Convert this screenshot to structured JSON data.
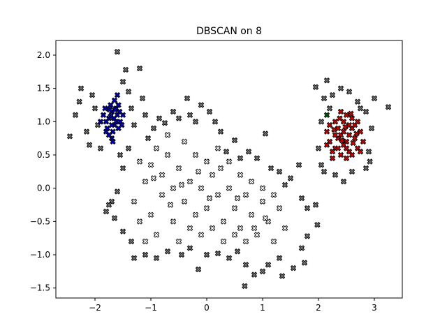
{
  "chart_data": {
    "type": "scatter",
    "title": "DBSCAN on 8",
    "xlabel": "",
    "ylabel": "",
    "xlim": [
      -2.7,
      3.5
    ],
    "ylim": [
      -1.65,
      2.22
    ],
    "xticks": [
      -2,
      -1,
      0,
      1,
      2,
      3
    ],
    "yticks": [
      -1.5,
      -1.0,
      -0.5,
      0.0,
      0.5,
      1.0,
      1.5,
      2.0
    ],
    "xtick_labels": [
      "−2",
      "−1",
      "0",
      "1",
      "2",
      "3"
    ],
    "ytick_labels": [
      "−1.5",
      "−1.0",
      "−0.5",
      "0.0",
      "0.5",
      "1.0",
      "1.5",
      "2.0"
    ],
    "grid": false,
    "marker": "X",
    "series": [
      {
        "color": "#0000cc",
        "kind": "cluster",
        "points": [
          [
            -1.75,
            1.05
          ],
          [
            -1.7,
            1.15
          ],
          [
            -1.65,
            0.95
          ],
          [
            -1.6,
            1.1
          ],
          [
            -1.8,
            1.0
          ],
          [
            -1.72,
            1.25
          ],
          [
            -1.62,
            1.2
          ],
          [
            -1.55,
            1.0
          ],
          [
            -1.85,
            1.1
          ],
          [
            -1.68,
            0.85
          ],
          [
            -1.58,
            0.9
          ],
          [
            -1.78,
            0.9
          ],
          [
            -1.7,
            0.75
          ],
          [
            -1.5,
            1.1
          ],
          [
            -1.65,
            1.32
          ],
          [
            -1.6,
            1.4
          ],
          [
            -1.82,
            1.2
          ],
          [
            -1.75,
            0.8
          ],
          [
            -1.52,
            0.95
          ],
          [
            -1.66,
            1.05
          ],
          [
            -1.74,
            1.18
          ],
          [
            -1.58,
            1.25
          ],
          [
            -1.7,
            0.95
          ],
          [
            -1.62,
            1.0
          ],
          [
            -1.9,
            1.0
          ],
          [
            -1.56,
            1.15
          ],
          [
            -1.68,
            0.7
          ],
          [
            -1.8,
            0.85
          ],
          [
            -1.64,
            1.18
          ],
          [
            -1.72,
            1.08
          ]
        ]
      },
      {
        "color": "#dd0000",
        "kind": "cluster",
        "points": [
          [
            2.4,
            0.8
          ],
          [
            2.5,
            0.7
          ],
          [
            2.6,
            0.9
          ],
          [
            2.3,
            0.6
          ],
          [
            2.45,
            1.0
          ],
          [
            2.55,
            0.55
          ],
          [
            2.35,
            0.9
          ],
          [
            2.65,
            0.75
          ],
          [
            2.2,
            0.7
          ],
          [
            2.5,
            1.1
          ],
          [
            2.7,
            0.6
          ],
          [
            2.4,
            0.5
          ],
          [
            2.3,
            1.0
          ],
          [
            2.6,
            1.05
          ],
          [
            2.75,
            0.85
          ],
          [
            2.15,
            0.85
          ],
          [
            2.45,
            0.65
          ],
          [
            2.55,
            0.8
          ],
          [
            2.35,
            0.75
          ],
          [
            2.65,
            0.95
          ],
          [
            2.25,
            0.55
          ],
          [
            2.5,
            0.45
          ],
          [
            2.4,
            1.15
          ],
          [
            2.8,
            0.7
          ],
          [
            2.2,
            0.95
          ],
          [
            2.6,
            0.5
          ],
          [
            2.3,
            0.8
          ],
          [
            2.7,
            1.0
          ],
          [
            2.45,
            0.85
          ],
          [
            2.55,
            0.95
          ],
          [
            2.35,
            0.6
          ],
          [
            2.75,
            0.55
          ],
          [
            2.15,
            0.65
          ],
          [
            2.5,
            0.6
          ],
          [
            2.42,
            0.72
          ],
          [
            2.62,
            0.68
          ],
          [
            2.28,
            0.88
          ],
          [
            2.68,
            0.82
          ],
          [
            2.38,
            1.05
          ],
          [
            2.58,
            1.12
          ],
          [
            2.25,
            0.45
          ],
          [
            2.48,
            0.92
          ]
        ]
      },
      {
        "color": "#006600",
        "kind": "cluster",
        "points": [
          [
            2.15,
            1.1
          ]
        ]
      },
      {
        "color": "#777777",
        "kind": "noise",
        "points": [
          [
            -2.45,
            0.78
          ],
          [
            -2.35,
            1.1
          ],
          [
            -2.28,
            1.3
          ],
          [
            -2.25,
            1.5
          ],
          [
            -2.15,
            0.85
          ],
          [
            -2.1,
            0.65
          ],
          [
            -2.05,
            1.4
          ],
          [
            -2.0,
            1.2
          ],
          [
            -1.95,
            0.95
          ],
          [
            -1.9,
            0.6
          ],
          [
            -1.6,
            2.05
          ],
          [
            -1.45,
            1.78
          ],
          [
            -1.5,
            1.6
          ],
          [
            -1.4,
            1.45
          ],
          [
            -1.35,
            1.2
          ],
          [
            -1.3,
            0.95
          ],
          [
            -1.2,
            1.8
          ],
          [
            -1.15,
            1.35
          ],
          [
            -1.1,
            1.1
          ],
          [
            -1.05,
            0.75
          ],
          [
            -0.95,
            0.9
          ],
          [
            -0.85,
            1.05
          ],
          [
            -0.75,
            0.98
          ],
          [
            -0.6,
            1.15
          ],
          [
            -0.5,
            1.05
          ],
          [
            -0.35,
            1.35
          ],
          [
            -0.3,
            1.1
          ],
          [
            -0.2,
            1.0
          ],
          [
            -0.1,
            1.25
          ],
          [
            0.05,
            1.15
          ],
          [
            0.15,
            1.0
          ],
          [
            0.25,
            0.85
          ],
          [
            0.35,
            0.55
          ],
          [
            0.5,
            0.72
          ],
          [
            0.6,
            0.45
          ],
          [
            0.75,
            0.55
          ],
          [
            0.9,
            0.45
          ],
          [
            1.05,
            0.82
          ],
          [
            1.15,
            0.3
          ],
          [
            1.3,
            0.25
          ],
          [
            1.4,
            0.05
          ],
          [
            1.5,
            0.15
          ],
          [
            1.65,
            0.35
          ],
          [
            1.7,
            -0.15
          ],
          [
            1.8,
            -0.3
          ],
          [
            1.95,
            -0.25
          ],
          [
            1.98,
            -0.55
          ],
          [
            1.8,
            -0.72
          ],
          [
            1.7,
            -0.9
          ],
          [
            1.75,
            -1.12
          ],
          [
            1.55,
            -1.2
          ],
          [
            1.35,
            -1.32
          ],
          [
            1.3,
            -1.05
          ],
          [
            1.1,
            -1.15
          ],
          [
            1.0,
            -1.25
          ],
          [
            0.85,
            -1.3
          ],
          [
            0.7,
            -1.15
          ],
          [
            0.68,
            -1.47
          ],
          [
            0.55,
            -0.95
          ],
          [
            0.4,
            -1.05
          ],
          [
            0.2,
            -0.98
          ],
          [
            0.0,
            -1.0
          ],
          [
            -0.15,
            -1.22
          ],
          [
            -0.3,
            -0.9
          ],
          [
            -0.45,
            -1.0
          ],
          [
            -0.7,
            -0.95
          ],
          [
            -0.9,
            -1.05
          ],
          [
            -1.1,
            -1.0
          ],
          [
            -1.35,
            -0.8
          ],
          [
            -1.5,
            -0.65
          ],
          [
            -1.65,
            -0.45
          ],
          [
            -1.8,
            -0.35
          ],
          [
            -1.7,
            -0.2
          ],
          [
            -1.6,
            -0.05
          ],
          [
            -1.5,
            0.3
          ],
          [
            -1.55,
            0.5
          ],
          [
            -1.4,
            0.6
          ],
          [
            -1.3,
            -1.05
          ],
          [
            -1.75,
            -0.25
          ],
          [
            2.1,
            1.35
          ],
          [
            2.2,
            1.2
          ],
          [
            2.05,
            1.0
          ],
          [
            2.0,
            0.6
          ],
          [
            2.05,
            0.35
          ],
          [
            2.1,
            0.25
          ],
          [
            2.3,
            0.2
          ],
          [
            2.45,
            0.1
          ],
          [
            2.6,
            0.25
          ],
          [
            2.85,
            0.3
          ],
          [
            2.9,
            0.55
          ],
          [
            2.95,
            0.9
          ],
          [
            3.0,
            1.35
          ],
          [
            3.25,
            1.22
          ],
          [
            2.85,
            1.15
          ],
          [
            2.7,
            1.3
          ],
          [
            2.55,
            1.45
          ],
          [
            2.4,
            1.5
          ],
          [
            2.25,
            1.4
          ],
          [
            1.95,
            1.52
          ],
          [
            2.15,
            1.62
          ],
          [
            2.75,
            1.2
          ],
          [
            2.92,
            0.4
          ]
        ]
      },
      {
        "color": "#ffffff",
        "kind": "noise-core",
        "points": [
          [
            -1.2,
            0.4
          ],
          [
            -1.1,
            0.1
          ],
          [
            -1.0,
            0.35
          ],
          [
            -0.9,
            0.6
          ],
          [
            -0.8,
            0.2
          ],
          [
            -0.7,
            0.5
          ],
          [
            -0.6,
            0.0
          ],
          [
            -0.5,
            0.3
          ],
          [
            -0.4,
            -0.2
          ],
          [
            -0.3,
            0.1
          ],
          [
            -0.2,
            -0.4
          ],
          [
            -0.1,
            0.0
          ],
          [
            0.0,
            -0.3
          ],
          [
            0.1,
            0.2
          ],
          [
            0.2,
            -0.1
          ],
          [
            0.3,
            -0.5
          ],
          [
            0.4,
            0.0
          ],
          [
            0.5,
            -0.3
          ],
          [
            0.6,
            -0.6
          ],
          [
            0.7,
            -0.1
          ],
          [
            0.8,
            -0.4
          ],
          [
            0.9,
            -0.7
          ],
          [
            1.0,
            -0.2
          ],
          [
            1.1,
            -0.5
          ],
          [
            1.2,
            -0.8
          ],
          [
            1.3,
            -0.3
          ],
          [
            1.4,
            -0.6
          ],
          [
            -1.3,
            -0.2
          ],
          [
            -1.2,
            -0.5
          ],
          [
            -1.0,
            -0.4
          ],
          [
            -0.9,
            -0.7
          ],
          [
            -0.8,
            -0.1
          ],
          [
            -0.6,
            -0.5
          ],
          [
            -0.5,
            -0.8
          ],
          [
            -0.3,
            -0.6
          ],
          [
            -0.1,
            -0.7
          ],
          [
            0.1,
            -0.6
          ],
          [
            0.3,
            -0.8
          ],
          [
            0.5,
            -0.7
          ],
          [
            0.7,
            -0.8
          ],
          [
            -0.7,
            0.8
          ],
          [
            -0.4,
            0.7
          ],
          [
            -0.2,
            0.5
          ],
          [
            0.0,
            0.4
          ],
          [
            0.2,
            0.6
          ],
          [
            0.4,
            0.4
          ],
          [
            0.6,
            0.2
          ],
          [
            0.8,
            0.1
          ],
          [
            1.0,
            0.0
          ],
          [
            1.2,
            -0.1
          ],
          [
            -1.1,
            -0.8
          ],
          [
            -0.95,
            0.15
          ],
          [
            -0.45,
            0.05
          ],
          [
            0.05,
            -0.15
          ],
          [
            0.55,
            -0.15
          ],
          [
            1.05,
            -0.45
          ],
          [
            -0.65,
            -0.25
          ],
          [
            0.25,
            0.3
          ],
          [
            -0.15,
            0.25
          ],
          [
            0.85,
            -0.6
          ]
        ]
      }
    ]
  }
}
